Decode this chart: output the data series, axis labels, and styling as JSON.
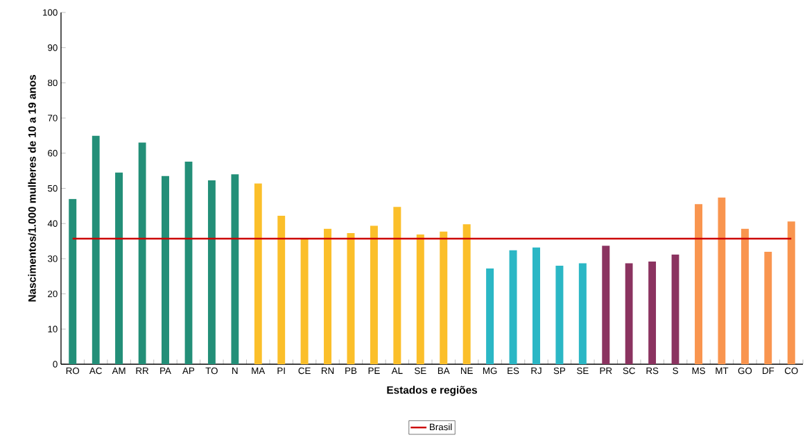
{
  "chart_data": {
    "type": "bar",
    "xlabel": "Estados e regiões",
    "ylabel": "Nascimentos/1.000 mulheres de 10 a 19 anos",
    "categories": [
      "RO",
      "AC",
      "AM",
      "RR",
      "PA",
      "AP",
      "TO",
      "N",
      "MA",
      "PI",
      "CE",
      "RN",
      "PB",
      "PE",
      "AL",
      "SE",
      "BA",
      "NE",
      "MG",
      "ES",
      "RJ",
      "SP",
      "SE",
      "PR",
      "SC",
      "RS",
      "S",
      "MS",
      "MT",
      "GO",
      "DF",
      "CO"
    ],
    "values": [
      47,
      65,
      54.5,
      63,
      53.5,
      57.6,
      52.3,
      54,
      51.4,
      42.2,
      35.6,
      38.5,
      37.3,
      39.4,
      44.7,
      36.9,
      37.7,
      39.8,
      27.2,
      32.4,
      33.2,
      28,
      28.7,
      33.7,
      28.7,
      29.2,
      31.2,
      45.5,
      47.4,
      38.5,
      32,
      40.6
    ],
    "colors": [
      "#238f78",
      "#238f78",
      "#238f78",
      "#238f78",
      "#238f78",
      "#238f78",
      "#238f78",
      "#238f78",
      "#fbbf2a",
      "#fbbf2a",
      "#fbbf2a",
      "#fbbf2a",
      "#fbbf2a",
      "#fbbf2a",
      "#fbbf2a",
      "#fbbf2a",
      "#fbbf2a",
      "#fbbf2a",
      "#2bb7c5",
      "#2bb7c5",
      "#2bb7c5",
      "#2bb7c5",
      "#2bb7c5",
      "#8b3360",
      "#8b3360",
      "#8b3360",
      "#8b3360",
      "#f9954f",
      "#f9954f",
      "#f9954f",
      "#f9954f",
      "#f9954f"
    ],
    "ylim": [
      0,
      100
    ],
    "yticks": [
      0,
      10,
      20,
      30,
      40,
      50,
      60,
      70,
      80,
      90,
      100
    ],
    "ref_lines": [
      {
        "axis": "y",
        "value": 35.7,
        "label": "Brasil",
        "color": "#cc0000"
      }
    ],
    "legend": "bottom",
    "grid": false
  }
}
